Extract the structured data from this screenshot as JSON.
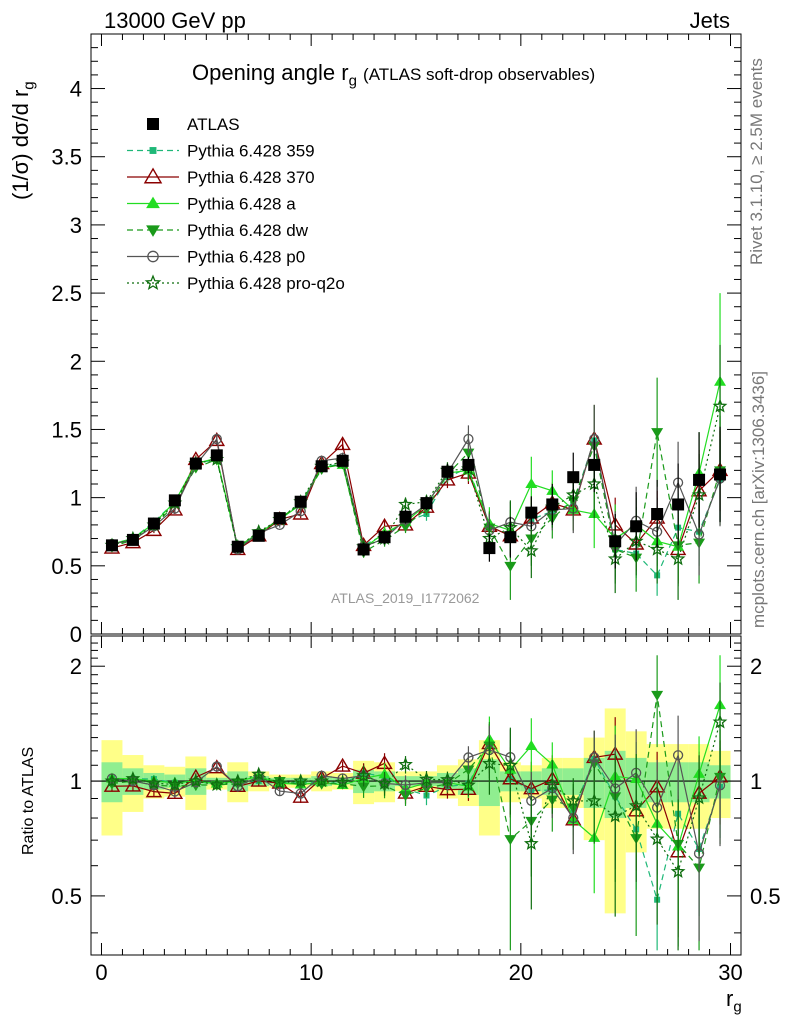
{
  "header": {
    "left": "13000 GeV pp",
    "right": "Jets"
  },
  "title_main": "Opening angle r",
  "title_sub": "g",
  "title_small": "(ATLAS soft-drop observables)",
  "ylabel_main": "(1/σ) dσ/d r",
  "ylabel_sub": "g",
  "xlabel_main": "r",
  "xlabel_sub": "g",
  "ratio_ylabel": "Ratio to ATLAS",
  "side_text_top": "Rivet 3.1.10, ≥ 2.5M events",
  "side_text_bottom": "mcplots.cern.ch [arXiv:1306.3436]",
  "watermark": "ATLAS_2019_I1772062",
  "chart_data": {
    "type": "scatter",
    "x": [
      0.5,
      1.5,
      2.5,
      3.5,
      4.5,
      5.5,
      6.5,
      7.5,
      8.5,
      9.5,
      10.5,
      11.5,
      12.5,
      13.5,
      14.5,
      15.5,
      16.5,
      17.5,
      18.5,
      19.5,
      20.5,
      21.5,
      22.5,
      23.5,
      24.5,
      25.5,
      26.5,
      27.5,
      28.5,
      29.5
    ],
    "xlim": [
      -0.5,
      30.5
    ],
    "ylim": [
      0,
      4.4
    ],
    "yticks": [
      "0",
      "0.5",
      "1",
      "1.5",
      "2",
      "2.5",
      "3",
      "3.5",
      "4"
    ],
    "xticks": [
      "0",
      "10",
      "20",
      "30"
    ],
    "ratio_ylim": [
      0.35,
      2.4
    ],
    "ratio_yticks": [
      "0.5",
      "1",
      "2"
    ],
    "colors": {
      "data": "#000000",
      "p359": "#1fb878",
      "p370": "#8b0000",
      "pa": "#22dd22",
      "pdw": "#1a9a1a",
      "pp0": "#555555",
      "pq2o": "#0f6e0f",
      "band_outer": "#ffff88",
      "band_inner": "#90ee90"
    },
    "series": [
      {
        "name": "ATLAS",
        "values": [
          0.65,
          0.69,
          0.81,
          0.98,
          1.25,
          1.31,
          0.64,
          0.72,
          0.85,
          0.97,
          1.23,
          1.27,
          0.62,
          0.71,
          0.86,
          0.96,
          1.19,
          1.24,
          0.63,
          0.71,
          0.89,
          0.95,
          1.15,
          1.24,
          0.68,
          0.79,
          0.88,
          0.95,
          1.13,
          1.17
        ],
        "err": [
          0.03,
          0.03,
          0.03,
          0.03,
          0.04,
          0.04,
          0.03,
          0.03,
          0.03,
          0.03,
          0.04,
          0.04,
          0.05,
          0.05,
          0.05,
          0.05,
          0.06,
          0.06,
          0.1,
          0.15,
          0.12,
          0.15,
          0.18,
          0.2,
          0.2,
          0.25,
          0.25,
          0.3,
          0.35,
          0.35
        ]
      },
      {
        "name": "Pythia 6.428 359",
        "values": [
          0.66,
          0.7,
          0.82,
          0.97,
          1.25,
          1.28,
          0.63,
          0.72,
          0.84,
          0.96,
          1.22,
          1.25,
          0.65,
          0.73,
          0.82,
          0.88,
          1.15,
          1.22,
          0.79,
          0.72,
          0.84,
          0.9,
          0.96,
          1.42,
          0.62,
          0.59,
          0.43,
          0.78,
          0.75,
          1.13
        ],
        "err": [
          0.02,
          0.02,
          0.02,
          0.03,
          0.03,
          0.03,
          0.02,
          0.02,
          0.02,
          0.03,
          0.03,
          0.03,
          0.04,
          0.04,
          0.05,
          0.05,
          0.06,
          0.08,
          0.1,
          0.15,
          0.12,
          0.12,
          0.15,
          0.25,
          0.2,
          0.18,
          0.15,
          0.25,
          0.25,
          0.3
        ]
      },
      {
        "name": "Pythia 6.428 370",
        "values": [
          0.63,
          0.67,
          0.76,
          0.91,
          1.28,
          1.42,
          0.62,
          0.72,
          0.84,
          0.88,
          1.25,
          1.39,
          0.65,
          0.79,
          0.8,
          0.93,
          1.13,
          1.18,
          0.79,
          0.72,
          0.85,
          0.96,
          0.91,
          1.43,
          0.8,
          0.66,
          0.85,
          0.62,
          1.05,
          1.2
        ],
        "err": [
          0.02,
          0.02,
          0.02,
          0.03,
          0.03,
          0.04,
          0.02,
          0.02,
          0.02,
          0.03,
          0.03,
          0.04,
          0.04,
          0.05,
          0.05,
          0.05,
          0.06,
          0.08,
          0.1,
          0.15,
          0.15,
          0.15,
          0.15,
          0.25,
          0.2,
          0.2,
          0.2,
          0.25,
          0.3,
          0.3
        ]
      },
      {
        "name": "Pythia 6.428 a",
        "values": [
          0.66,
          0.7,
          0.81,
          0.97,
          1.25,
          1.29,
          0.64,
          0.74,
          0.84,
          0.95,
          1.22,
          1.24,
          0.63,
          0.74,
          0.82,
          0.95,
          1.18,
          1.2,
          0.81,
          0.76,
          1.1,
          1.05,
          0.91,
          0.88,
          0.7,
          0.8,
          0.68,
          0.64,
          1.18,
          1.85
        ],
        "err": [
          0.02,
          0.02,
          0.02,
          0.03,
          0.03,
          0.03,
          0.02,
          0.02,
          0.02,
          0.03,
          0.03,
          0.03,
          0.04,
          0.05,
          0.05,
          0.05,
          0.06,
          0.08,
          0.12,
          0.15,
          0.2,
          0.15,
          0.15,
          0.25,
          0.25,
          0.2,
          0.25,
          0.25,
          0.3,
          0.65
        ]
      },
      {
        "name": "Pythia 6.428 dw",
        "values": [
          0.64,
          0.69,
          0.79,
          0.95,
          1.22,
          1.28,
          0.63,
          0.73,
          0.85,
          0.95,
          1.21,
          1.25,
          0.6,
          0.69,
          0.79,
          0.92,
          1.17,
          1.33,
          0.78,
          0.5,
          0.7,
          0.85,
          0.98,
          1.38,
          0.62,
          0.56,
          1.48,
          0.65,
          0.67,
          1.2
        ],
        "err": [
          0.02,
          0.02,
          0.02,
          0.03,
          0.03,
          0.03,
          0.02,
          0.02,
          0.02,
          0.03,
          0.03,
          0.03,
          0.04,
          0.05,
          0.05,
          0.05,
          0.06,
          0.15,
          0.12,
          0.25,
          0.2,
          0.15,
          0.15,
          0.3,
          0.25,
          0.25,
          0.4,
          0.3,
          0.3,
          0.4
        ]
      },
      {
        "name": "Pythia 6.428 p0",
        "values": [
          0.66,
          0.69,
          0.79,
          0.92,
          1.24,
          1.43,
          0.62,
          0.74,
          0.8,
          0.9,
          1.27,
          1.29,
          0.64,
          0.7,
          0.84,
          0.95,
          1.18,
          1.43,
          0.76,
          0.82,
          0.79,
          0.91,
          0.92,
          1.43,
          0.65,
          0.83,
          0.75,
          1.11,
          0.73,
          1.14
        ],
        "err": [
          0.02,
          0.02,
          0.02,
          0.03,
          0.03,
          0.04,
          0.02,
          0.02,
          0.02,
          0.03,
          0.03,
          0.04,
          0.04,
          0.04,
          0.05,
          0.05,
          0.06,
          0.1,
          0.12,
          0.15,
          0.15,
          0.15,
          0.18,
          0.25,
          0.25,
          0.25,
          0.25,
          0.3,
          0.3,
          0.35
        ]
      },
      {
        "name": "Pythia 6.428 pro-q2o",
        "values": [
          0.65,
          0.7,
          0.8,
          0.96,
          1.25,
          1.28,
          0.64,
          0.75,
          0.84,
          0.97,
          1.23,
          1.26,
          0.64,
          0.7,
          0.95,
          0.97,
          1.2,
          1.21,
          0.7,
          0.78,
          0.61,
          0.93,
          1.02,
          1.1,
          0.55,
          0.68,
          0.62,
          0.55,
          1.02,
          1.67
        ],
        "err": [
          0.02,
          0.02,
          0.02,
          0.03,
          0.03,
          0.03,
          0.02,
          0.02,
          0.02,
          0.03,
          0.03,
          0.03,
          0.04,
          0.05,
          0.05,
          0.05,
          0.06,
          0.08,
          0.12,
          0.2,
          0.2,
          0.15,
          0.15,
          0.25,
          0.25,
          0.25,
          0.25,
          0.3,
          0.3,
          0.45
        ]
      }
    ],
    "band_outer": [
      0.28,
      0.17,
      0.1,
      0.09,
      0.16,
      0.05,
      0.12,
      0.06,
      0.04,
      0.04,
      0.06,
      0.05,
      0.13,
      0.12,
      0.06,
      0.06,
      0.1,
      0.14,
      0.28,
      0.12,
      0.1,
      0.15,
      0.15,
      0.3,
      0.55,
      0.35,
      0.25,
      0.25,
      0.25,
      0.2
    ],
    "band_inner": [
      0.12,
      0.08,
      0.05,
      0.04,
      0.08,
      0.02,
      0.06,
      0.03,
      0.02,
      0.02,
      0.03,
      0.02,
      0.07,
      0.06,
      0.03,
      0.03,
      0.05,
      0.08,
      0.14,
      0.06,
      0.06,
      0.08,
      0.08,
      0.15,
      0.2,
      0.15,
      0.12,
      0.12,
      0.12,
      0.1
    ]
  }
}
